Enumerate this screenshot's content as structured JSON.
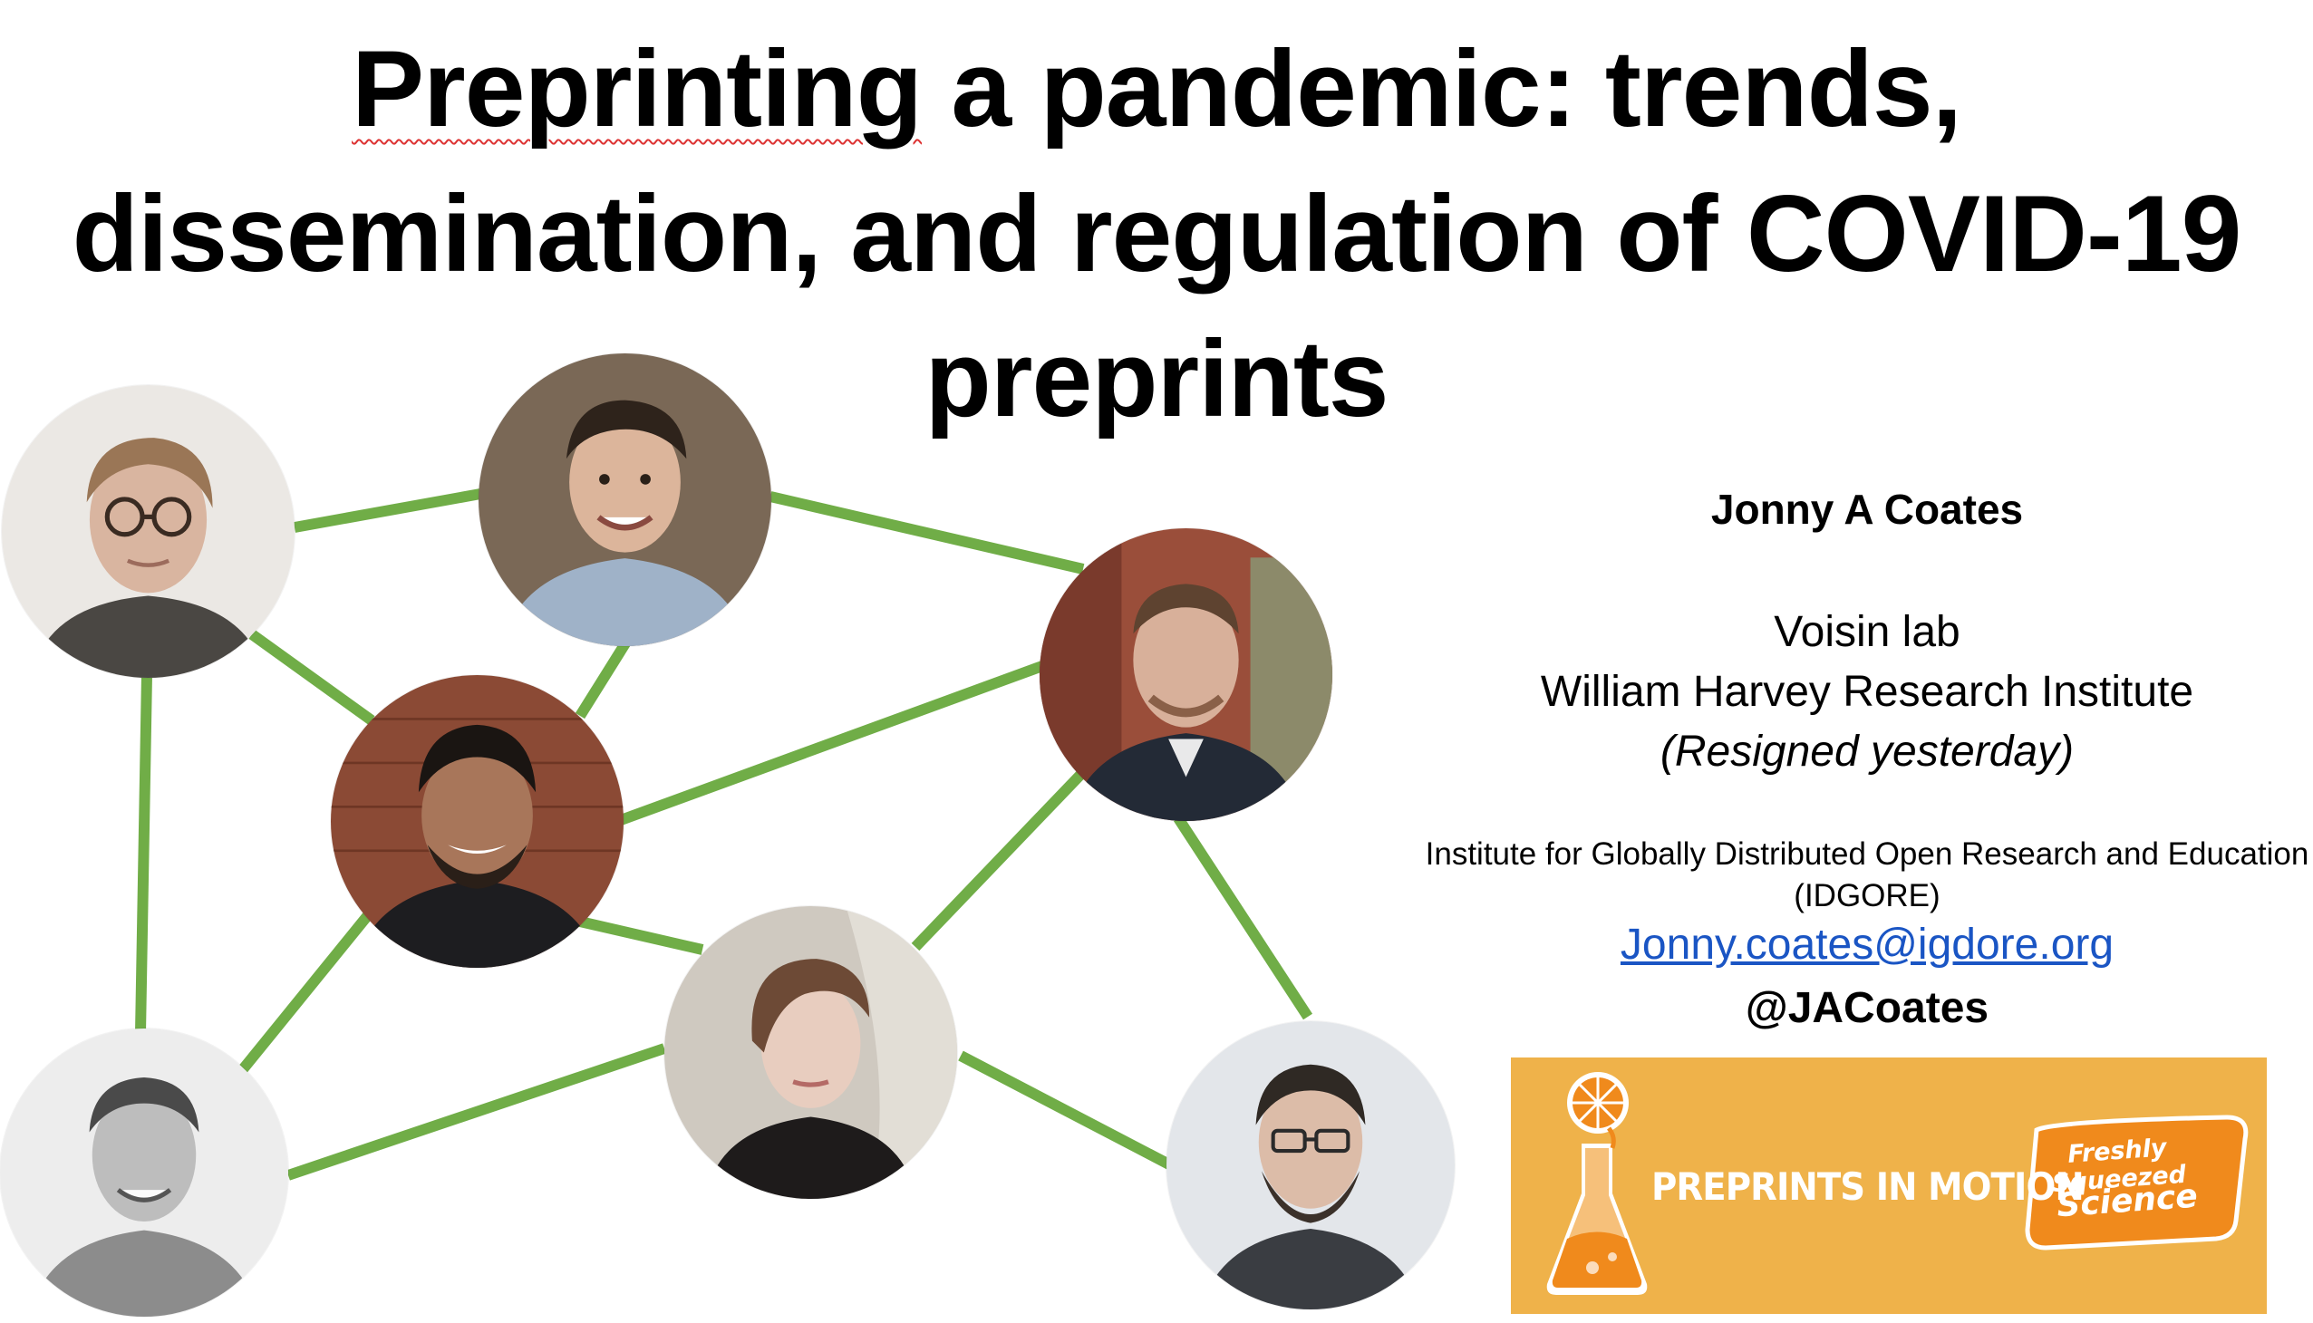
{
  "slide": {
    "title_word_1": "Preprinting",
    "title_rest_1": " a pandemic: trends,",
    "title_line_2": "dissemination, and regulation of COVID-19",
    "title_line_3": "preprints"
  },
  "author": {
    "name": "Jonny A Coates",
    "lab": "Voisin lab",
    "institute": "William Harvey Research Institute",
    "note": "(Resigned yesterday)",
    "org_line_1": "Institute for Globally Distributed Open Research and Education",
    "org_line_2": "(IDGORE)",
    "email": "Jonny.coates@igdore.org",
    "handle": "@JACoates"
  },
  "banner": {
    "text": "PREPRINTS IN MOTION",
    "badge_line_1": "Freshly Squeezed",
    "badge_line_2": "Science"
  },
  "colors": {
    "edge": "#70ad47",
    "banner": "#efb24a",
    "link": "#1a55c4"
  }
}
